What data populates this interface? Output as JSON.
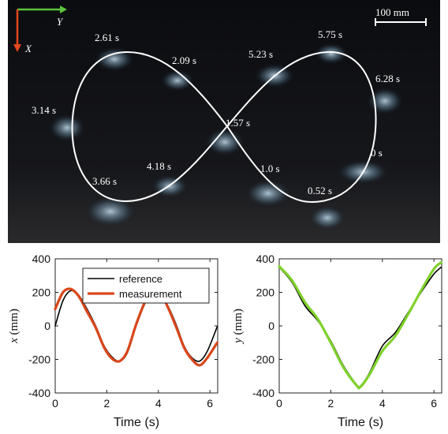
{
  "photo": {
    "axis_x_label": "X",
    "axis_y_label": "Y",
    "scale_bar_label": "100 mm",
    "timestamps": [
      "2.61 s",
      "2.09 s",
      "5.23 s",
      "5.75 s",
      "6.28 s",
      "3.14 s",
      "1.57 s",
      "0 s",
      "4.18 s",
      "3.66 s",
      "1.0 s",
      "0.52 s"
    ],
    "colors": {
      "x_arrow": "#e4461e",
      "y_arrow": "#5cc43c",
      "trajectory": "#ffffff"
    }
  },
  "chart_data": [
    {
      "type": "line",
      "xlabel": "Time (s)",
      "ylabel": "x (mm)",
      "xlim": [
        0,
        6.3
      ],
      "ylim": [
        -400,
        400
      ],
      "xticks": [
        "0",
        "2",
        "4",
        "6"
      ],
      "yticks": [
        "400",
        "200",
        "0",
        "-200",
        "-400"
      ],
      "legend": "top-left",
      "series": [
        {
          "name": "reference",
          "color": "#000000",
          "x": [
            0,
            0.3,
            0.6,
            0.9,
            1.2,
            1.57,
            1.9,
            2.2,
            2.5,
            2.8,
            3.14,
            3.5,
            3.8,
            4.1,
            4.4,
            4.71,
            5.0,
            5.3,
            5.6,
            5.9,
            6.28
          ],
          "y": [
            0,
            150,
            210,
            185,
            110,
            0,
            -120,
            -185,
            -210,
            -160,
            0,
            140,
            205,
            190,
            110,
            0,
            -120,
            -190,
            -210,
            -150,
            -5
          ]
        },
        {
          "name": "measurement",
          "color": "#d9471b",
          "x": [
            0,
            0.3,
            0.6,
            0.9,
            1.2,
            1.57,
            1.9,
            2.2,
            2.5,
            2.8,
            3.14,
            3.5,
            3.8,
            4.1,
            4.4,
            4.71,
            5.0,
            5.3,
            5.6,
            5.9,
            6.28
          ],
          "y": [
            100,
            200,
            220,
            180,
            95,
            -10,
            -130,
            -195,
            -210,
            -150,
            10,
            150,
            210,
            190,
            100,
            -15,
            -130,
            -200,
            -235,
            -190,
            -100
          ]
        }
      ]
    },
    {
      "type": "line",
      "xlabel": "Time (s)",
      "ylabel": "y (mm)",
      "xlim": [
        0,
        6.3
      ],
      "ylim": [
        -400,
        400
      ],
      "xticks": [
        "0",
        "2",
        "4",
        "6"
      ],
      "yticks": [
        "400",
        "200",
        "0",
        "-200",
        "-400"
      ],
      "series": [
        {
          "name": "reference",
          "color": "#000000",
          "x": [
            0,
            0.5,
            1.0,
            1.5,
            2.0,
            2.5,
            3.0,
            3.14,
            3.5,
            4.0,
            4.5,
            5.0,
            5.5,
            6.0,
            6.28
          ],
          "y": [
            350,
            260,
            120,
            30,
            -90,
            -240,
            -350,
            -360,
            -280,
            -120,
            -40,
            80,
            200,
            310,
            350
          ]
        },
        {
          "name": "measurement",
          "color": "#7fd12b",
          "x": [
            0,
            0.5,
            1.0,
            1.5,
            2.0,
            2.5,
            3.0,
            3.14,
            3.5,
            4.0,
            4.5,
            5.0,
            5.5,
            6.0,
            6.28
          ],
          "y": [
            355,
            270,
            140,
            40,
            -100,
            -250,
            -355,
            -365,
            -290,
            -150,
            -60,
            70,
            210,
            340,
            378
          ]
        }
      ]
    }
  ]
}
